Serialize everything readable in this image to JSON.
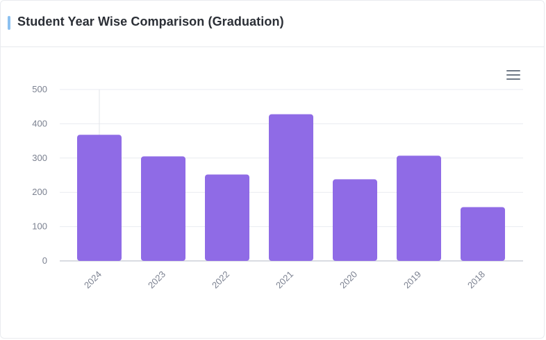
{
  "card": {
    "title": "Student Year Wise Comparison (Graduation)"
  },
  "toolbar": {
    "menu_icon": "hamburger-menu-icon"
  },
  "colors": {
    "bar": "#8f6be6",
    "accent": "#8cc0f0"
  },
  "chart_data": {
    "type": "bar",
    "categories": [
      "2024",
      "2023",
      "2022",
      "2021",
      "2020",
      "2019",
      "2018"
    ],
    "values": [
      368,
      305,
      252,
      428,
      238,
      307,
      157
    ],
    "ylim": [
      0,
      500
    ],
    "yticks": [
      0,
      100,
      200,
      300,
      400,
      500
    ],
    "grid": true,
    "xlabel": "",
    "ylabel": ""
  }
}
